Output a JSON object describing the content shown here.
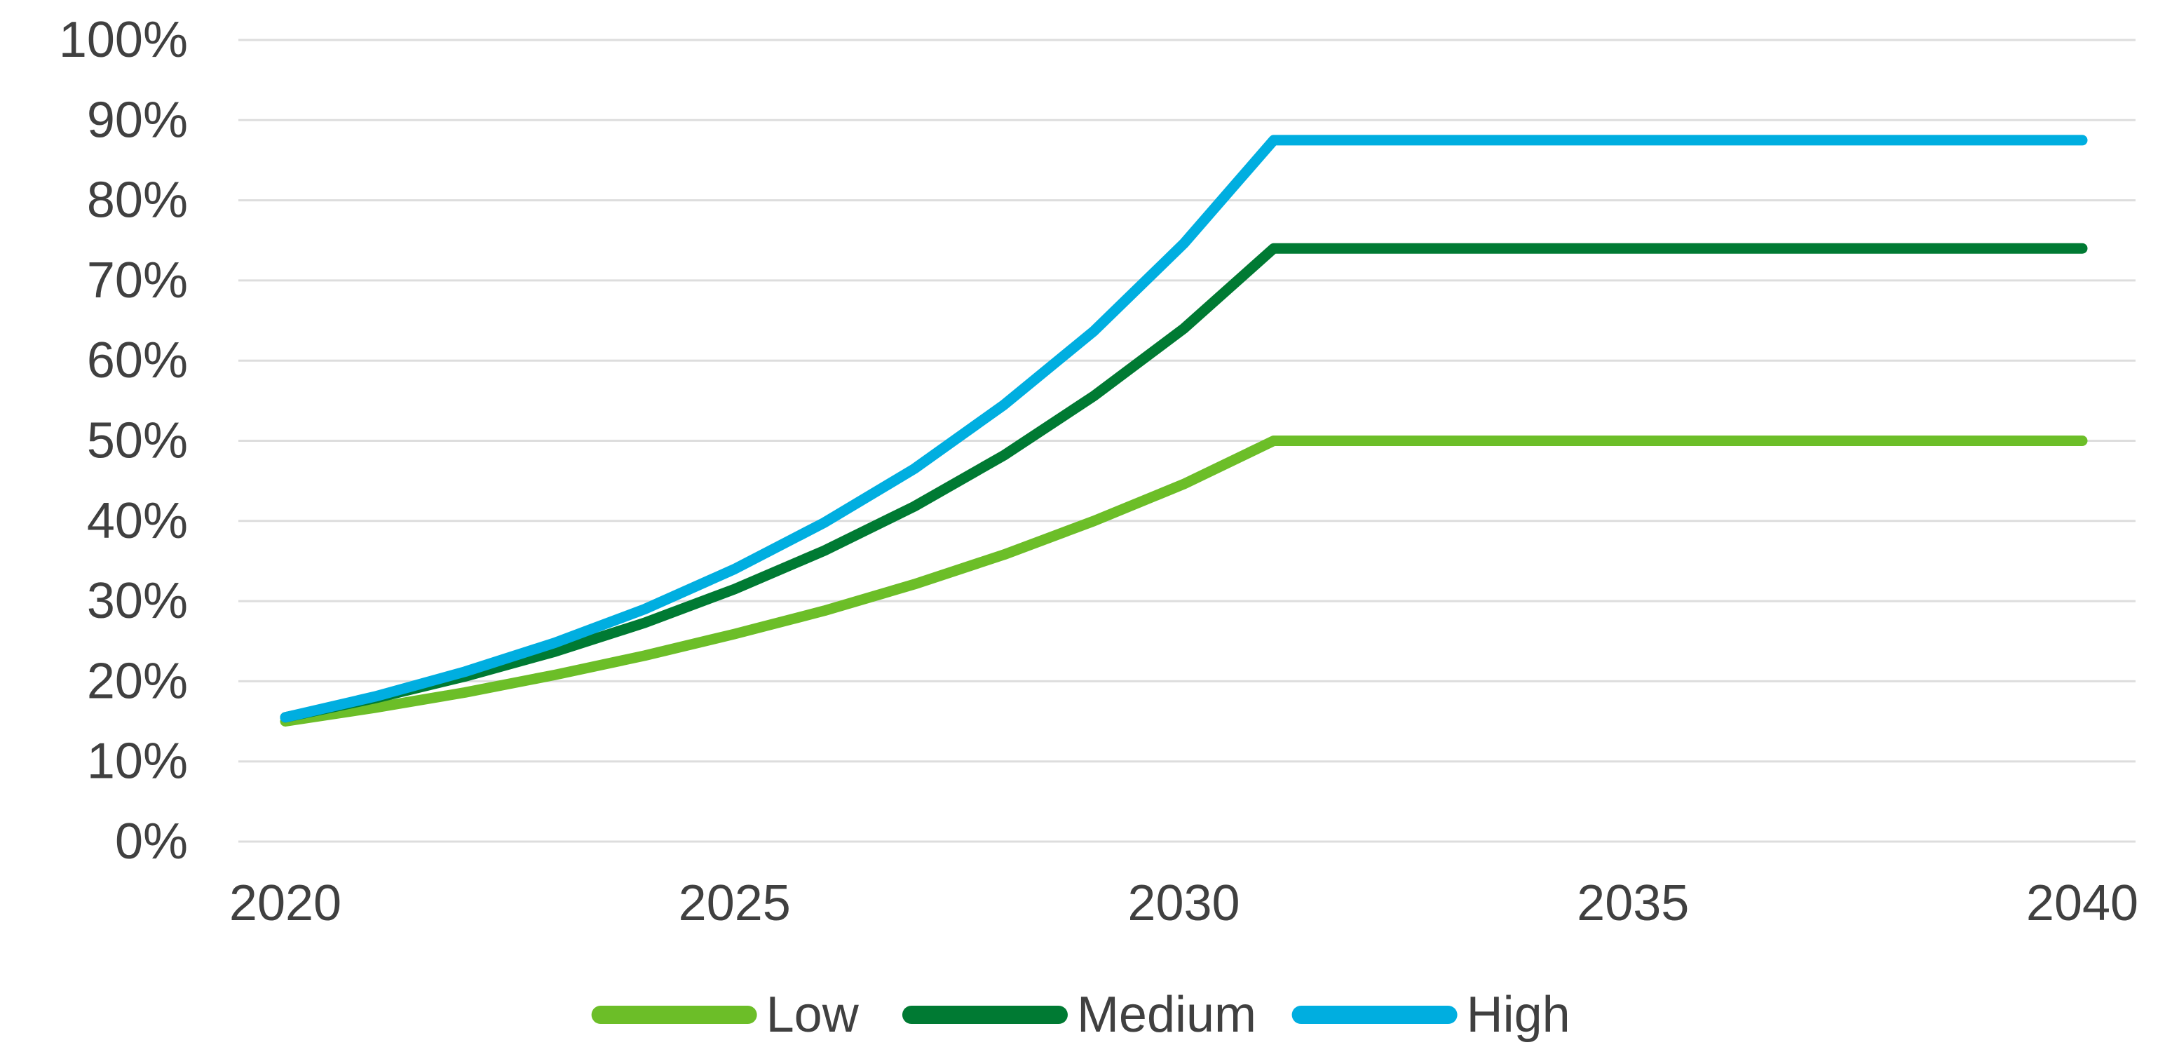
{
  "chart_data": {
    "type": "line",
    "title": "",
    "xlabel": "",
    "ylabel": "",
    "x": [
      2020,
      2021,
      2022,
      2023,
      2024,
      2025,
      2026,
      2027,
      2028,
      2029,
      2030,
      2031,
      2032,
      2033,
      2034,
      2035,
      2036,
      2037,
      2038,
      2039,
      2040
    ],
    "x_tick_labels": [
      "2020",
      "2025",
      "2030",
      "2035",
      "2040"
    ],
    "x_tick_years": [
      2020,
      2025,
      2030,
      2035,
      2040
    ],
    "y_tick_labels": [
      "0%",
      "10%",
      "20%",
      "30%",
      "40%",
      "50%",
      "60%",
      "70%",
      "80%",
      "90%",
      "100%"
    ],
    "y_tick_values": [
      0,
      10,
      20,
      30,
      40,
      50,
      60,
      70,
      80,
      90,
      100
    ],
    "ylim": [
      0,
      100
    ],
    "grid": true,
    "legend_position": "bottom",
    "series": [
      {
        "name": "Low",
        "color": "#6CBE28",
        "values": [
          15,
          16.7,
          18.6,
          20.8,
          23.2,
          25.9,
          28.8,
          32.1,
          35.8,
          40,
          44.6,
          50,
          50,
          50,
          50,
          50,
          50,
          50,
          50,
          50,
          50
        ]
      },
      {
        "name": "Medium",
        "color": "#007A33",
        "values": [
          15.5,
          17.9,
          20.6,
          23.7,
          27.3,
          31.5,
          36.3,
          41.8,
          48.2,
          55.6,
          64,
          74,
          74,
          74,
          74,
          74,
          74,
          74,
          74,
          74,
          74
        ]
      },
      {
        "name": "High",
        "color": "#00AEE0",
        "values": [
          15.5,
          18.1,
          21.2,
          24.8,
          29,
          34,
          39.8,
          46.5,
          54.5,
          63.7,
          74.6,
          87.5,
          87.5,
          87.5,
          87.5,
          87.5,
          87.5,
          87.5,
          87.5,
          87.5,
          87.5
        ]
      }
    ]
  },
  "colors": {
    "background": "#FFFFFF",
    "gridline": "#DDDDDD",
    "text": "#404040"
  }
}
